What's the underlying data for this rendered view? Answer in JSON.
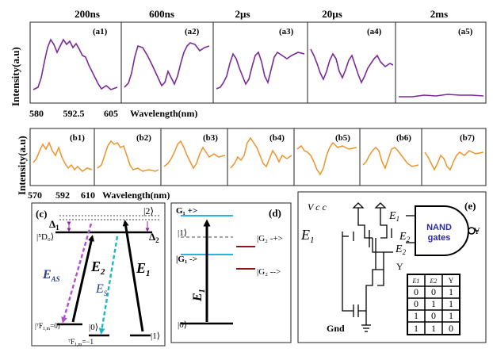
{
  "row_a": {
    "time_labels": [
      "200ns",
      "600ns",
      "2µs",
      "20µs",
      "2ms"
    ],
    "panel_labels": [
      "(a1)",
      "(a2)",
      "(a3)",
      "(a4)",
      "(a5)"
    ],
    "y_label": "Intensity(a.u)",
    "x_ticks": [
      "580",
      "592.5",
      "605"
    ],
    "x_label": "Wavelength(nm)",
    "color": "#7b2a9a"
  },
  "row_b": {
    "panel_labels": [
      "(b1)",
      "(b2)",
      "(b3)",
      "(b4)",
      "(b5)",
      "(b6)",
      "(b7)"
    ],
    "y_label": "Intensity(a.u)",
    "x_ticks": [
      "570",
      "592",
      "610"
    ],
    "x_label": "Wavelength(nm)",
    "color": "#f0922a"
  },
  "panel_c": {
    "label": "(c)",
    "delta1": "Δ",
    "delta1_sub": "1",
    "delta2": "Δ",
    "delta2_sub": "2",
    "ket2": "|2⟩",
    "d0": "|⁵D₀⟩",
    "e_as": "E",
    "e_as_sub": "AS",
    "e2": "E",
    "e2_sub": "2",
    "e1": "E",
    "e1_sub": "1",
    "es": "E",
    "es_sub": "S",
    "f0": "|⁷F",
    "f0_sub": "1,m",
    "f0_tail": "=0⟩",
    "ket0": "|0⟩",
    "fm1": "⁷F",
    "fm1_sub": "1,m",
    "fm1_tail": "=−1",
    "ket1": "|1⟩",
    "colors": {
      "purple": "#b04fd0",
      "cyan": "#1bb7c8",
      "black": "#000000"
    }
  },
  "panel_d": {
    "label": "(d)",
    "g1p": "G₁ +>",
    "ket1": "|1⟩",
    "g2p": "|G₂ -+>",
    "g1m": "|G₁ ->",
    "g2m": "|G₂ -->",
    "e": "E",
    "e_sub": "1",
    "ket0": "|0⟩",
    "colors": {
      "blue": "#2bb3e6",
      "red": "#8b1a1a",
      "gray": "#888888"
    }
  },
  "panel_e": {
    "label": "(e)",
    "vcc": "V c c",
    "e1_left": "E",
    "e1_left_sub": "1",
    "e1_gate": "E",
    "e1_gate_sub": "1",
    "e2a": "E",
    "e2a_sub": "2",
    "e2b": "E",
    "e2b_sub": "2",
    "y_node": "Y",
    "gate_line1": "NAND",
    "gate_line2": "gates",
    "gate_out": "Y",
    "gnd": "Gnd",
    "table_header": [
      "E1",
      "E2",
      "Y"
    ],
    "table_rows": [
      [
        "0",
        "0",
        "1"
      ],
      [
        "0",
        "1",
        "1"
      ],
      [
        "1",
        "0",
        "1"
      ],
      [
        "1",
        "1",
        "0"
      ]
    ],
    "colors": {
      "gate_text": "#2a2aa6"
    }
  }
}
